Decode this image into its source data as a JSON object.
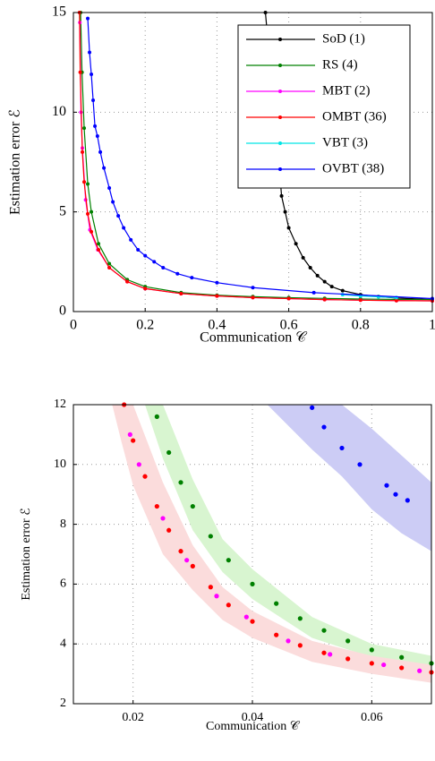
{
  "chart_data": [
    {
      "type": "line",
      "x_label": "Communication 𝒞",
      "y_label": "Estimation error ℰ",
      "xlim": [
        0,
        1
      ],
      "ylim": [
        0,
        15
      ],
      "xticks": [
        0,
        0.2,
        0.4,
        0.6,
        0.8,
        1
      ],
      "yticks": [
        0,
        5,
        10,
        15
      ],
      "grid": true,
      "legend": "upper right",
      "series": [
        {
          "name": "SoD (1)",
          "color": "#000000",
          "x": [
            0.535,
            0.575,
            0.58,
            0.59,
            0.6,
            0.62,
            0.64,
            0.66,
            0.68,
            0.7,
            0.72,
            0.75,
            0.8,
            0.85,
            0.9,
            1
          ],
          "values": [
            15,
            6.9,
            5.8,
            5,
            4.2,
            3.4,
            2.7,
            2.2,
            1.8,
            1.5,
            1.25,
            1.05,
            0.85,
            0.75,
            0.68,
            0.6
          ]
        },
        {
          "name": "RS (4)",
          "color": "#008000",
          "x": [
            0.02,
            0.024,
            0.03,
            0.04,
            0.05,
            0.07,
            0.1,
            0.15,
            0.2,
            0.3,
            0.4,
            0.5,
            0.6,
            0.7,
            0.8,
            0.9,
            1
          ],
          "values": [
            15,
            12,
            9.2,
            6.4,
            5,
            3.4,
            2.4,
            1.6,
            1.25,
            0.95,
            0.82,
            0.75,
            0.7,
            0.66,
            0.63,
            0.61,
            0.6
          ]
        },
        {
          "name": "MBT (2)",
          "color": "#ff00ff",
          "x": [
            0.018,
            0.021,
            0.025,
            0.034,
            0.046,
            0.068,
            0.1,
            0.15,
            0.2,
            0.3,
            0.4,
            0.5,
            0.6,
            0.7,
            0.8,
            0.9,
            1
          ],
          "values": [
            14.5,
            10,
            8.2,
            5.6,
            4.1,
            3.1,
            2.2,
            1.5,
            1.15,
            0.9,
            0.78,
            0.7,
            0.65,
            0.6,
            0.57,
            0.55,
            0.54
          ]
        },
        {
          "name": "OMBT (36)",
          "color": "#ff0000",
          "x": [
            0.017,
            0.019,
            0.025,
            0.03,
            0.04,
            0.05,
            0.07,
            0.1,
            0.15,
            0.2,
            0.3,
            0.4,
            0.5,
            0.6,
            0.7,
            0.8,
            0.9,
            1
          ],
          "values": [
            15,
            12,
            8,
            6.5,
            4.9,
            4,
            3.1,
            2.2,
            1.5,
            1.15,
            0.9,
            0.78,
            0.7,
            0.65,
            0.6,
            0.57,
            0.55,
            0.54
          ]
        },
        {
          "name": "VBT (3)",
          "color": "#00e5e5",
          "x": [
            0.75,
            0.8,
            0.85,
            0.9
          ],
          "values": [
            0.85,
            0.78,
            0.74,
            0.7
          ]
        },
        {
          "name": "OVBT (38)",
          "color": "#0000ff",
          "x": [
            0.04,
            0.045,
            0.05,
            0.055,
            0.06,
            0.067,
            0.075,
            0.085,
            0.1,
            0.11,
            0.125,
            0.14,
            0.16,
            0.18,
            0.2,
            0.225,
            0.25,
            0.29,
            0.33,
            0.4,
            0.5,
            0.67,
            1
          ],
          "values": [
            14.7,
            13,
            11.9,
            10.6,
            9.3,
            8.8,
            8,
            7.2,
            6.2,
            5.5,
            4.8,
            4.2,
            3.6,
            3.1,
            2.8,
            2.5,
            2.2,
            1.9,
            1.7,
            1.45,
            1.2,
            0.95,
            0.65
          ]
        }
      ]
    },
    {
      "type": "scatter",
      "x_label": "Communication 𝒞",
      "y_label": "Estimation error ℰ",
      "xlim": [
        0.01,
        0.07
      ],
      "ylim": [
        2,
        12
      ],
      "xticks": [
        0.02,
        0.04,
        0.06
      ],
      "yticks": [
        2,
        4,
        6,
        8,
        10,
        12
      ],
      "grid": true,
      "series": [
        {
          "color": "#0000ff",
          "band": {
            "color": "#ccccf5",
            "x": [
              0.0425,
              0.05,
              0.055,
              0.06,
              0.065,
              0.07
            ],
            "lower": [
              12,
              10.5,
              9.6,
              8.5,
              7.7,
              7.1
            ],
            "upper": [
              12,
              12,
              12,
              11.2,
              10.3,
              9.4
            ]
          },
          "x": [
            0.05,
            0.052,
            0.055,
            0.058,
            0.0625,
            0.064,
            0.066
          ],
          "values": [
            11.9,
            11.25,
            10.55,
            10,
            9.3,
            9,
            8.8
          ]
        },
        {
          "color": "#008000",
          "band": {
            "color": "#d8f5d0",
            "x": [
              0.022,
              0.025,
              0.03,
              0.035,
              0.04,
              0.05,
              0.06,
              0.07
            ],
            "lower": [
              12,
              10.2,
              7.8,
              6.4,
              5.5,
              4.2,
              3.55,
              3.1
            ],
            "upper": [
              12,
              12,
              9.5,
              7.5,
              6.5,
              4.9,
              4,
              3.6
            ]
          },
          "x": [
            0.024,
            0.026,
            0.028,
            0.03,
            0.033,
            0.036,
            0.04,
            0.044,
            0.048,
            0.052,
            0.056,
            0.06,
            0.065,
            0.07
          ],
          "values": [
            11.6,
            10.4,
            9.4,
            8.6,
            7.6,
            6.8,
            6,
            5.35,
            4.85,
            4.45,
            4.1,
            3.8,
            3.55,
            3.35
          ]
        },
        {
          "color": "#ff0000",
          "band": {
            "color": "#fbdcdc",
            "x": [
              0.0165,
              0.018,
              0.02,
              0.025,
              0.03,
              0.035,
              0.04,
              0.05,
              0.06,
              0.07
            ],
            "lower": [
              12,
              10.8,
              9.3,
              7,
              5.8,
              4.8,
              4.2,
              3.4,
              3,
              2.7
            ],
            "upper": [
              12,
              12,
              12,
              9.4,
              7.3,
              5.9,
              5.1,
              4.1,
              3.6,
              3.3
            ]
          },
          "x": [
            0.0185,
            0.02,
            0.022,
            0.024,
            0.026,
            0.028,
            0.03,
            0.033,
            0.036,
            0.04,
            0.044,
            0.048,
            0.052,
            0.056,
            0.06,
            0.065,
            0.07
          ],
          "values": [
            12,
            10.8,
            9.6,
            8.6,
            7.8,
            7.1,
            6.6,
            5.9,
            5.3,
            4.75,
            4.3,
            3.95,
            3.7,
            3.5,
            3.35,
            3.2,
            3.05
          ]
        },
        {
          "color": "#ff00ff",
          "x": [
            0.0195,
            0.021,
            0.025,
            0.029,
            0.034,
            0.039,
            0.046,
            0.053,
            0.062,
            0.068
          ],
          "values": [
            11,
            10,
            8.2,
            6.8,
            5.6,
            4.9,
            4.1,
            3.65,
            3.3,
            3.1
          ]
        }
      ]
    }
  ]
}
